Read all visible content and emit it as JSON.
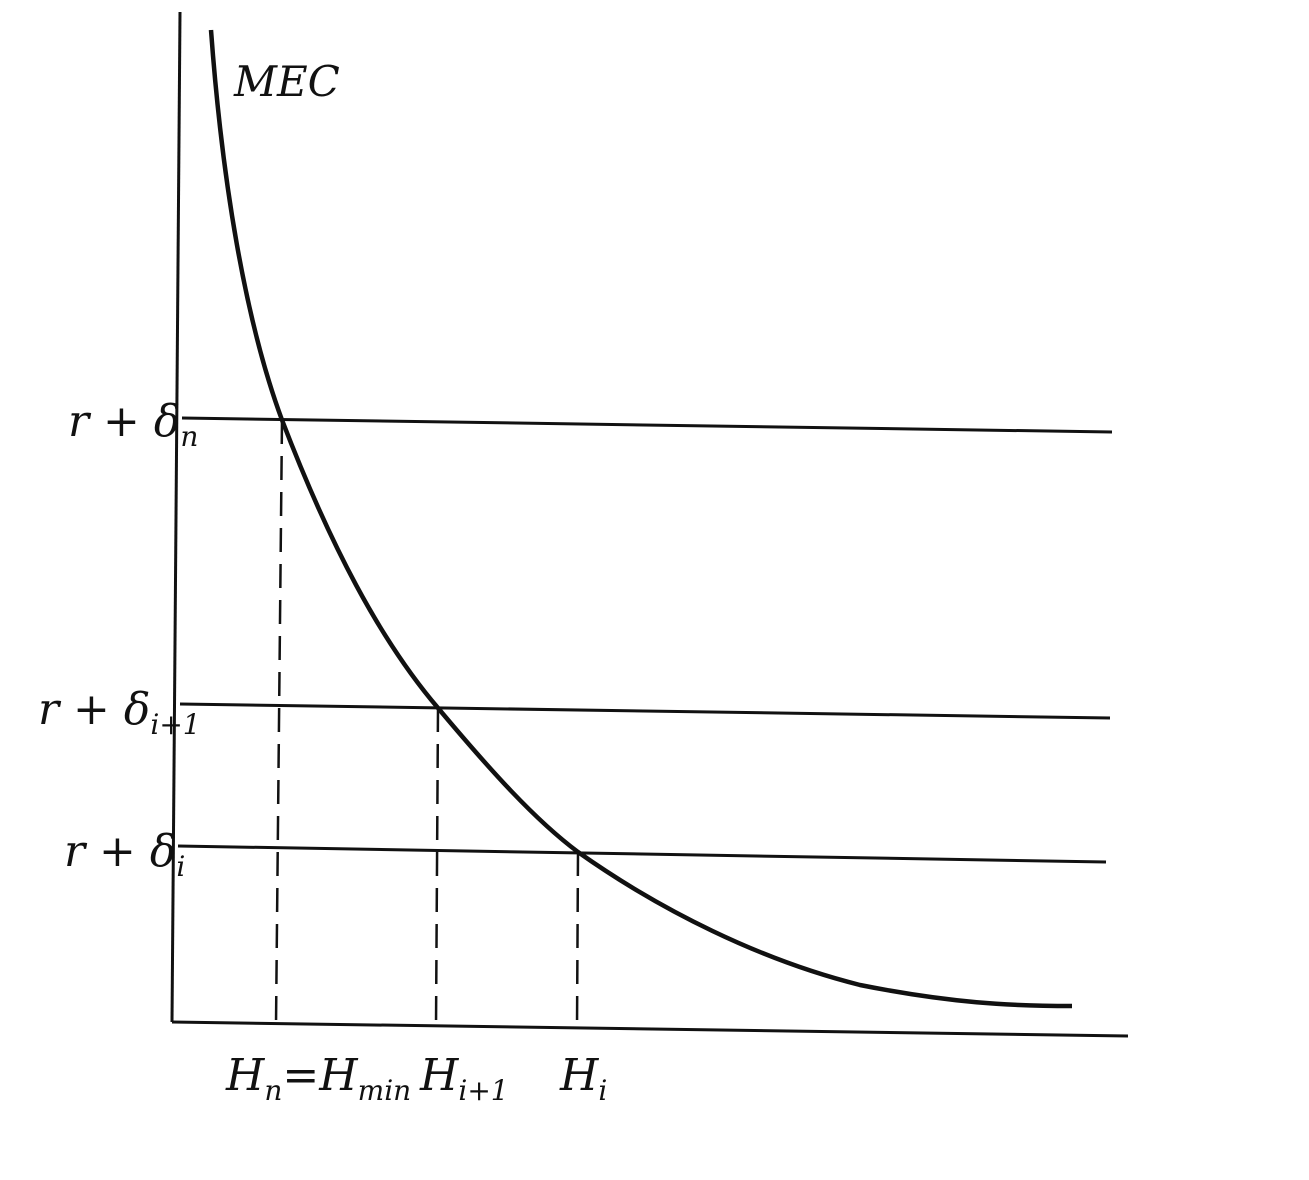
{
  "diagram": {
    "curve_label": "MEC",
    "y_labels": [
      {
        "base": "r + δ",
        "sub": "n"
      },
      {
        "base": "r + δ",
        "sub": "i+1"
      },
      {
        "base": "r + δ",
        "sub": "i"
      }
    ],
    "x_labels": [
      {
        "base": "H",
        "sub": "n",
        "eq": "=H",
        "eq_sub": "min"
      },
      {
        "base": "H",
        "sub": "i+1"
      },
      {
        "base": "H",
        "sub": "i"
      }
    ]
  },
  "colors": {
    "ink": "#111111",
    "background": "#ffffff"
  }
}
